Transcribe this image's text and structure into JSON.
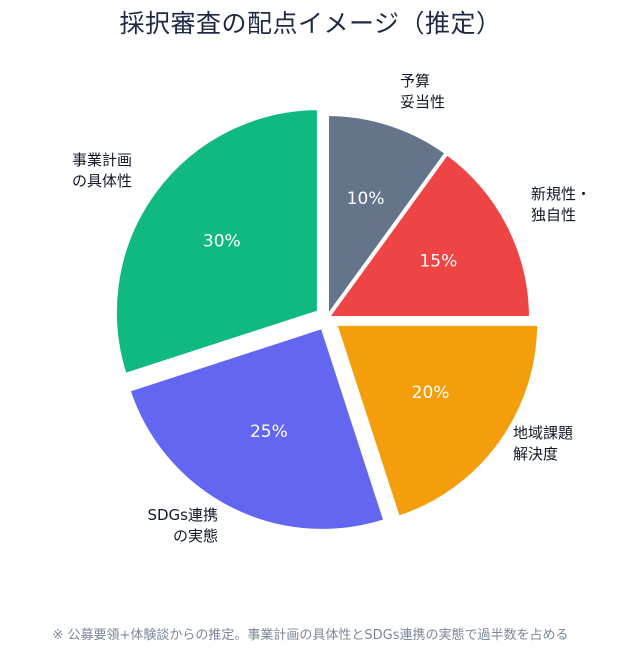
{
  "chart_data": {
    "type": "pie",
    "title": "採択審査の配点イメージ（推定）",
    "slices": [
      {
        "label": "予算\n妥当性",
        "value": 10,
        "value_label": "10%",
        "color": "#64748b",
        "exploded": false
      },
      {
        "label": "新規性・\n独自性",
        "value": 15,
        "value_label": "15%",
        "color": "#ef4444",
        "exploded": false
      },
      {
        "label": "地域課題\n解決度",
        "value": 20,
        "value_label": "20%",
        "color": "#f59e0b",
        "exploded": true
      },
      {
        "label": "SDGs連携\nの実態",
        "value": 25,
        "value_label": "25%",
        "color": "#6366f1",
        "exploded": true
      },
      {
        "label": "事業計画\nの具体性",
        "value": 30,
        "value_label": "30%",
        "color": "#10b981",
        "exploded": true
      }
    ]
  },
  "footnote": "※ 公募要領+体験談からの推定。事業計画の具体性とSDGs連携の実態で過半数を占める"
}
